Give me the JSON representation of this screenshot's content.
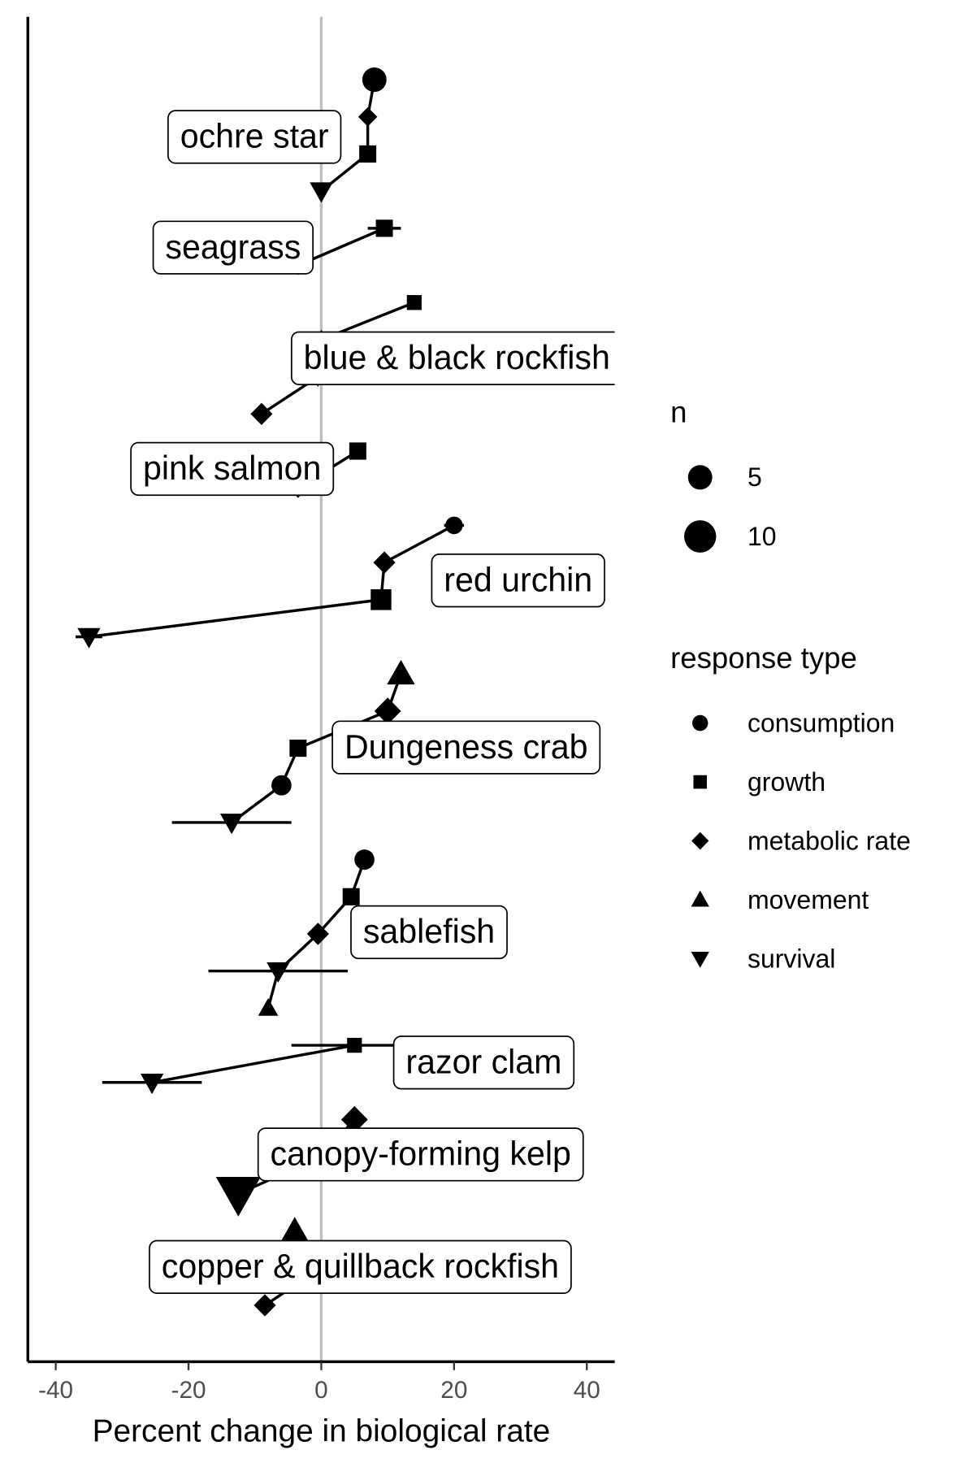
{
  "chart_data": {
    "type": "dot",
    "xlabel": "Percent change in biological rate",
    "xlim": [
      -44.2,
      44.2
    ],
    "xticks": [
      -40,
      -20,
      0,
      20,
      40
    ],
    "size_legend_title": "n",
    "size_legend": [
      5,
      10
    ],
    "shape_legend_title": "response type",
    "response_types": [
      "consumption",
      "growth",
      "metabolic rate",
      "movement",
      "survival"
    ],
    "groups": [
      {
        "label": "ochre star",
        "points": [
          {
            "response": "consumption",
            "x": 8,
            "n": 5
          },
          {
            "response": "metabolic rate",
            "x": 7,
            "n": 2
          },
          {
            "response": "growth",
            "x": 7,
            "n": 3
          },
          {
            "response": "survival",
            "x": 0,
            "n": 3
          }
        ]
      },
      {
        "label": "seagrass",
        "points": [
          {
            "response": "growth",
            "x": 9.5,
            "n": 3,
            "err": 2.5
          },
          {
            "response": "metabolic rate",
            "x": -3.5,
            "n": 2
          }
        ]
      },
      {
        "label": "blue & black rockfish",
        "points": [
          {
            "response": "growth",
            "x": 14,
            "n": 2
          },
          {
            "response": "movement",
            "x": 0,
            "n": 2
          },
          {
            "response": "survival",
            "x": -0.5,
            "n": 2
          },
          {
            "response": "metabolic rate",
            "x": -9,
            "n": 3
          }
        ]
      },
      {
        "label": "pink salmon",
        "points": [
          {
            "response": "growth",
            "x": 5.5,
            "n": 3
          },
          {
            "response": "metabolic rate",
            "x": -3.5,
            "n": 2
          }
        ]
      },
      {
        "label": "red urchin",
        "points": [
          {
            "response": "consumption",
            "x": 20,
            "n": 2,
            "err": 1.5
          },
          {
            "response": "metabolic rate",
            "x": 9.5,
            "n": 3
          },
          {
            "response": "growth",
            "x": 9,
            "n": 5
          },
          {
            "response": "survival",
            "x": -35,
            "n": 3,
            "err": 2
          }
        ]
      },
      {
        "label": "Dungeness crab",
        "points": [
          {
            "response": "movement",
            "x": 12,
            "n": 5
          },
          {
            "response": "metabolic rate",
            "x": 10,
            "n": 5
          },
          {
            "response": "growth",
            "x": -3.5,
            "n": 3
          },
          {
            "response": "consumption",
            "x": -6,
            "n": 3
          },
          {
            "response": "survival",
            "x": -13.5,
            "n": 3,
            "err": 9
          }
        ]
      },
      {
        "label": "sablefish",
        "points": [
          {
            "response": "consumption",
            "x": 6.5,
            "n": 3
          },
          {
            "response": "growth",
            "x": 4.5,
            "n": 3
          },
          {
            "response": "metabolic rate",
            "x": -0.5,
            "n": 3
          },
          {
            "response": "survival",
            "x": -6.5,
            "n": 3,
            "err": 10.5
          },
          {
            "response": "movement",
            "x": -8,
            "n": 2
          }
        ]
      },
      {
        "label": "razor clam",
        "points": [
          {
            "response": "growth",
            "x": 5,
            "n": 2,
            "err": 9.5
          },
          {
            "response": "survival",
            "x": -25.5,
            "n": 3,
            "err": 7.5
          }
        ]
      },
      {
        "label": "canopy-forming kelp",
        "points": [
          {
            "response": "metabolic rate",
            "x": 5,
            "n": 5
          },
          {
            "response": "growth",
            "x": 0,
            "n": 2
          },
          {
            "response": "survival",
            "x": -12.5,
            "n": 16
          }
        ]
      },
      {
        "label": "copper & quillback rockfish",
        "points": [
          {
            "response": "movement",
            "x": -4,
            "n": 5
          },
          {
            "response": "growth",
            "x": 0,
            "n": 2
          },
          {
            "response": "metabolic rate",
            "x": -8.5,
            "n": 3
          }
        ]
      }
    ]
  }
}
